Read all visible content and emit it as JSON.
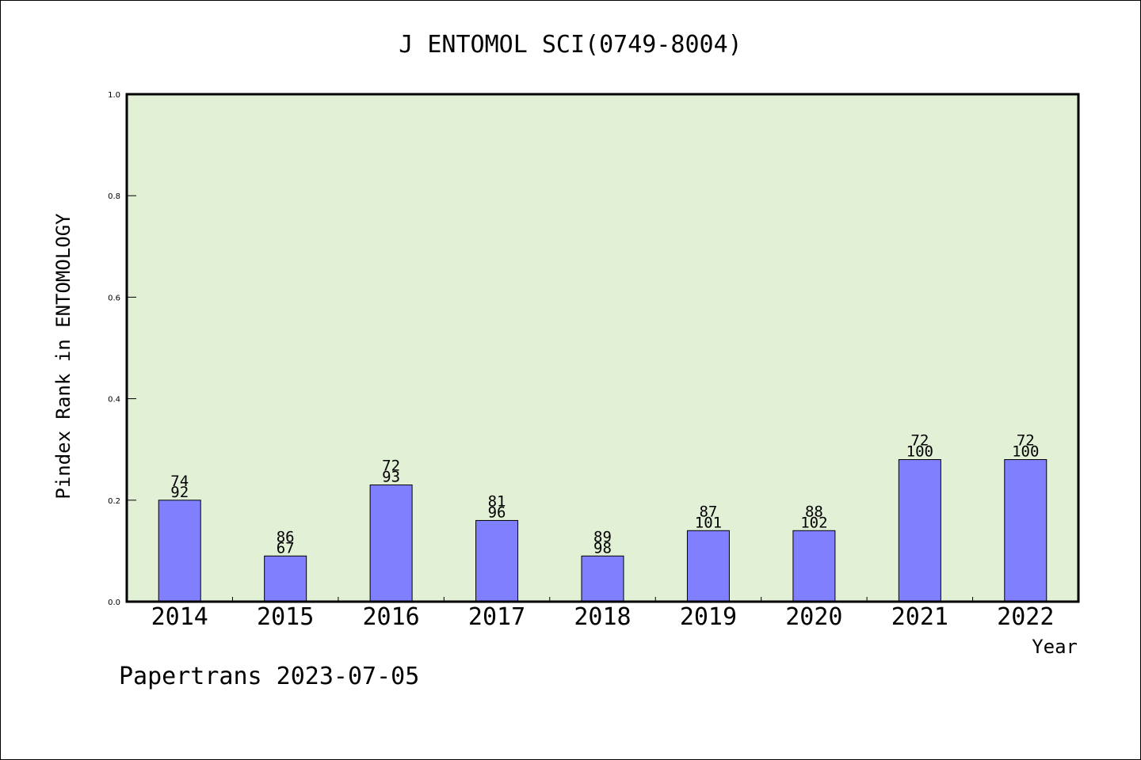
{
  "chart_data": {
    "type": "bar",
    "title": "J ENTOMOL SCI(0749-8004)",
    "ylabel": "Pindex Rank in ENTOMOLOGY",
    "xlabel": "Year",
    "footer": "Papertrans 2023-07-05",
    "categories": [
      "2014",
      "2015",
      "2016",
      "2017",
      "2018",
      "2019",
      "2020",
      "2021",
      "2022"
    ],
    "values": [
      0.2,
      0.09,
      0.23,
      0.16,
      0.09,
      0.14,
      0.14,
      0.28,
      0.28
    ],
    "labels_top": [
      "74",
      "86",
      "72",
      "81",
      "89",
      "87",
      "88",
      "72",
      "72"
    ],
    "labels_bottom": [
      "92",
      "67",
      "93",
      "96",
      "98",
      "101",
      "102",
      "100",
      "100"
    ],
    "yticks": [
      "0.0",
      "0.2",
      "0.4",
      "0.6",
      "0.8",
      "1.0"
    ],
    "ylim": [
      0,
      1.0
    ],
    "grid": false,
    "colors": {
      "plot_background": "#e2f0d6",
      "bar_fill": "#8080ff",
      "bar_stroke": "#000000"
    }
  }
}
